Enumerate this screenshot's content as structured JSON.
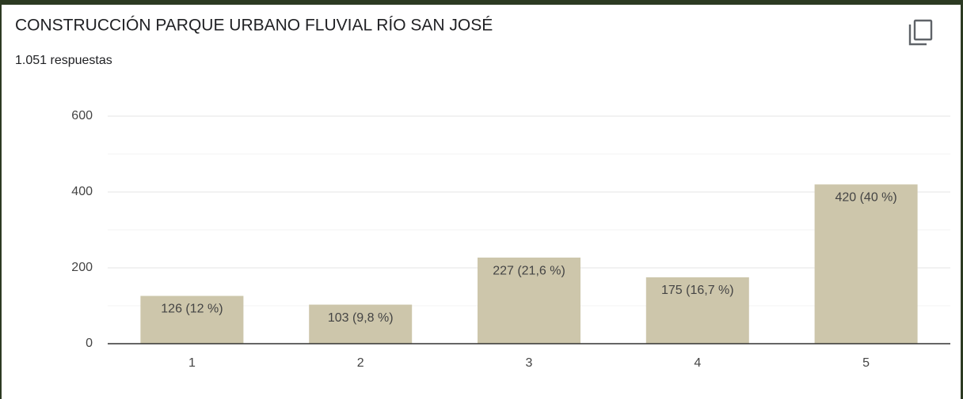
{
  "chart_data": {
    "type": "bar",
    "title": "CONSTRUCCIÓN PARQUE URBANO FLUVIAL RÍO SAN JOSÉ",
    "subtitle": "1.051 respuestas",
    "categories": [
      "1",
      "2",
      "3",
      "4",
      "5"
    ],
    "values": [
      126,
      103,
      227,
      175,
      420
    ],
    "value_labels": [
      "126 (12 %)",
      "103 (9,8 %)",
      "227 (21,6 %)",
      "175 (16,7 %)",
      "420 (40 %)"
    ],
    "color": "#cdc6ab",
    "ylim": [
      0,
      600
    ],
    "yticks": [
      0,
      200,
      400,
      600
    ],
    "minor_yticks": [
      100,
      300,
      500
    ],
    "grid": true
  }
}
